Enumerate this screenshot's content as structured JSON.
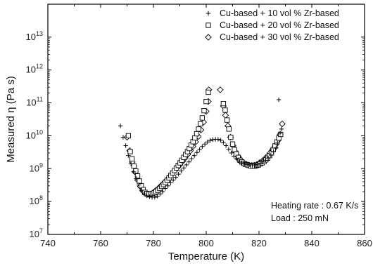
{
  "chart_data": {
    "type": "scatter",
    "title": "",
    "xlabel": "Temperature (K)",
    "ylabel": "Measured η (Pa s)",
    "xlim": [
      740,
      860
    ],
    "ylim": [
      10000000.0,
      100000000000000.0
    ],
    "yscale": "log",
    "x_ticks": [
      740,
      760,
      780,
      800,
      820,
      840,
      860
    ],
    "x_tick_labels": [
      "740",
      "760",
      "780",
      "800",
      "820",
      "840",
      "860"
    ],
    "y_ticks": [
      10000000.0,
      100000000.0,
      1000000000.0,
      10000000000.0,
      100000000000.0,
      1000000000000.0,
      10000000000000.0
    ],
    "y_tick_labels": [
      {
        "base": "10",
        "exp": "7"
      },
      {
        "base": "10",
        "exp": "8"
      },
      {
        "base": "10",
        "exp": "9"
      },
      {
        "base": "10",
        "exp": "10"
      },
      {
        "base": "10",
        "exp": "11"
      },
      {
        "base": "10",
        "exp": "12"
      },
      {
        "base": "10",
        "exp": "13"
      }
    ],
    "grid": false,
    "legend_position": "top-right",
    "annotations": [
      "Heating rate : 0.67 K/s",
      "Load : 250 mN"
    ],
    "series": [
      {
        "name": "Cu-based + 10 vol % Zr-based",
        "marker": "plus",
        "points": [
          [
            767.5,
            20000000000.0
          ],
          [
            768.5,
            9000000000.0
          ],
          [
            769.5,
            5000000000.0
          ],
          [
            770.5,
            2500000000.0
          ],
          [
            771.5,
            1400000000.0
          ],
          [
            772.5,
            800000000.0
          ],
          [
            773.5,
            500000000.0
          ],
          [
            774.5,
            320000000.0
          ],
          [
            775.5,
            220000000.0
          ],
          [
            776.5,
            170000000.0
          ],
          [
            777.5,
            150000000.0
          ],
          [
            778.5,
            140000000.0
          ],
          [
            779.5,
            135000000.0
          ],
          [
            780.5,
            135000000.0
          ],
          [
            781.5,
            145000000.0
          ],
          [
            782.5,
            170000000.0
          ],
          [
            783.5,
            200000000.0
          ],
          [
            784.5,
            250000000.0
          ],
          [
            785.5,
            300000000.0
          ],
          [
            786.5,
            370000000.0
          ],
          [
            787.5,
            450000000.0
          ],
          [
            788.5,
            550000000.0
          ],
          [
            789.5,
            680000000.0
          ],
          [
            790.5,
            850000000.0
          ],
          [
            791.5,
            1050000000.0
          ],
          [
            792.5,
            1300000000.0
          ],
          [
            793.5,
            1600000000.0
          ],
          [
            794.5,
            2000000000.0
          ],
          [
            795.5,
            2500000000.0
          ],
          [
            796.5,
            3100000000.0
          ],
          [
            797.5,
            3800000000.0
          ],
          [
            798.5,
            4700000000.0
          ],
          [
            799.5,
            5600000000.0
          ],
          [
            800.5,
            6500000000.0
          ],
          [
            801.5,
            7200000000.0
          ],
          [
            802.5,
            7600000000.0
          ],
          [
            803.5,
            7800000000.0
          ],
          [
            804.5,
            7800000000.0
          ],
          [
            805.5,
            7300000000.0
          ],
          [
            806.5,
            6200000000.0
          ],
          [
            807.5,
            5000000000.0
          ],
          [
            808.5,
            3900000000.0
          ],
          [
            809.5,
            3000000000.0
          ],
          [
            810.5,
            2400000000.0
          ],
          [
            811.5,
            2000000000.0
          ],
          [
            812.5,
            1700000000.0
          ],
          [
            813.5,
            1500000000.0
          ],
          [
            814.5,
            1400000000.0
          ],
          [
            815.5,
            1350000000.0
          ],
          [
            816.5,
            1300000000.0
          ],
          [
            817.5,
            1300000000.0
          ],
          [
            818.5,
            1300000000.0
          ],
          [
            819.5,
            1350000000.0
          ],
          [
            820.5,
            1450000000.0
          ],
          [
            821.5,
            1600000000.0
          ],
          [
            822.5,
            1800000000.0
          ],
          [
            823.5,
            2100000000.0
          ],
          [
            824.5,
            2600000000.0
          ],
          [
            825.5,
            3300000000.0
          ],
          [
            826.5,
            4300000000.0
          ],
          [
            827.0,
            6000000000.0
          ],
          [
            827.5,
            125000000000.0
          ],
          [
            828.0,
            12000000000.0
          ],
          [
            828.5,
            16000000000.0
          ]
        ]
      },
      {
        "name": "Cu-based + 20 vol % Zr-based",
        "marker": "square",
        "points": [
          [
            770.5,
            10000000000.0
          ],
          [
            771.2,
            3300000000.0
          ],
          [
            771.9,
            2000000000.0
          ],
          [
            772.6,
            1200000000.0
          ],
          [
            773.3,
            850000000.0
          ],
          [
            774.0,
            600000000.0
          ],
          [
            774.7,
            420000000.0
          ],
          [
            775.4,
            300000000.0
          ],
          [
            776.1,
            230000000.0
          ],
          [
            776.8,
            190000000.0
          ],
          [
            777.5,
            175000000.0
          ],
          [
            778.2,
            170000000.0
          ],
          [
            778.9,
            170000000.0
          ],
          [
            779.6,
            175000000.0
          ],
          [
            780.3,
            185000000.0
          ],
          [
            781.0,
            200000000.0
          ],
          [
            781.7,
            220000000.0
          ],
          [
            782.4,
            250000000.0
          ],
          [
            783.1,
            290000000.0
          ],
          [
            783.8,
            330000000.0
          ],
          [
            784.5,
            380000000.0
          ],
          [
            785.2,
            440000000.0
          ],
          [
            785.9,
            520000000.0
          ],
          [
            786.6,
            620000000.0
          ],
          [
            787.3,
            740000000.0
          ],
          [
            788.0,
            880000000.0
          ],
          [
            788.7,
            1050000000.0
          ],
          [
            789.4,
            1250000000.0
          ],
          [
            790.1,
            1500000000.0
          ],
          [
            790.8,
            1800000000.0
          ],
          [
            791.5,
            2200000000.0
          ],
          [
            792.2,
            2700000000.0
          ],
          [
            792.9,
            3300000000.0
          ],
          [
            793.6,
            4100000000.0
          ],
          [
            794.3,
            5200000000.0
          ],
          [
            795.0,
            6600000000.0
          ],
          [
            795.7,
            8600000000.0
          ],
          [
            796.4,
            11500000000.0
          ],
          [
            797.1,
            16000000000.0
          ],
          [
            797.8,
            23000000000.0
          ],
          [
            798.5,
            35000000000.0
          ],
          [
            799.2,
            58000000000.0
          ],
          [
            800.0,
            110000000000.0
          ],
          [
            800.8,
            210000000000.0
          ],
          [
            806.5,
            95000000000.0
          ],
          [
            807.2,
            60000000000.0
          ],
          [
            807.9,
            30000000000.0
          ],
          [
            808.6,
            16000000000.0
          ],
          [
            809.3,
            9000000000.0
          ],
          [
            810.0,
            5600000000.0
          ],
          [
            810.7,
            3800000000.0
          ],
          [
            811.4,
            2800000000.0
          ],
          [
            812.1,
            2200000000.0
          ],
          [
            812.8,
            1800000000.0
          ],
          [
            813.5,
            1600000000.0
          ],
          [
            814.2,
            1450000000.0
          ],
          [
            814.9,
            1350000000.0
          ],
          [
            815.6,
            1300000000.0
          ],
          [
            816.3,
            1250000000.0
          ],
          [
            817.0,
            1200000000.0
          ],
          [
            817.7,
            1200000000.0
          ],
          [
            818.4,
            1200000000.0
          ],
          [
            819.1,
            1250000000.0
          ],
          [
            819.8,
            1300000000.0
          ],
          [
            820.5,
            1400000000.0
          ],
          [
            821.2,
            1500000000.0
          ],
          [
            821.9,
            1650000000.0
          ],
          [
            822.6,
            1850000000.0
          ],
          [
            823.3,
            2100000000.0
          ],
          [
            824.0,
            2500000000.0
          ],
          [
            824.7,
            3000000000.0
          ],
          [
            825.4,
            3800000000.0
          ],
          [
            826.1,
            4900000000.0
          ],
          [
            826.8,
            6500000000.0
          ],
          [
            827.5,
            8500000000.0
          ],
          [
            828.2,
            11000000000.0
          ]
        ]
      },
      {
        "name": "Cu-based + 30 vol % Zr-based",
        "marker": "diamond",
        "points": [
          [
            770.0,
            9000000000.0
          ],
          [
            771.0,
            3500000000.0
          ],
          [
            772.0,
            1600000000.0
          ],
          [
            773.0,
            800000000.0
          ],
          [
            774.0,
            450000000.0
          ],
          [
            775.0,
            290000000.0
          ],
          [
            776.0,
            210000000.0
          ],
          [
            777.0,
            175000000.0
          ],
          [
            778.0,
            165000000.0
          ],
          [
            779.0,
            170000000.0
          ],
          [
            780.0,
            190000000.0
          ],
          [
            781.0,
            220000000.0
          ],
          [
            782.0,
            260000000.0
          ],
          [
            783.0,
            310000000.0
          ],
          [
            784.0,
            370000000.0
          ],
          [
            785.0,
            450000000.0
          ],
          [
            786.0,
            550000000.0
          ],
          [
            787.0,
            680000000.0
          ],
          [
            788.0,
            850000000.0
          ],
          [
            789.0,
            1050000000.0
          ],
          [
            790.0,
            1300000000.0
          ],
          [
            791.0,
            1650000000.0
          ],
          [
            792.0,
            2100000000.0
          ],
          [
            793.0,
            2700000000.0
          ],
          [
            794.0,
            3500000000.0
          ],
          [
            795.0,
            4700000000.0
          ],
          [
            796.0,
            6500000000.0
          ],
          [
            797.0,
            9500000000.0
          ],
          [
            798.0,
            15000000000.0
          ],
          [
            799.0,
            26000000000.0
          ],
          [
            800.0,
            55000000000.0
          ],
          [
            800.8,
            110000000000.0
          ],
          [
            801.0,
            250000000000.0
          ],
          [
            805.3,
            250000000000.0
          ],
          [
            806.5,
            80000000000.0
          ],
          [
            807.3,
            42000000000.0
          ],
          [
            808.2,
            20000000000.0
          ],
          [
            809.2,
            9000000000.0
          ],
          [
            810.2,
            5000000000.0
          ],
          [
            811.2,
            3200000000.0
          ],
          [
            812.2,
            2300000000.0
          ],
          [
            813.2,
            1800000000.0
          ],
          [
            814.2,
            1500000000.0
          ],
          [
            815.2,
            1350000000.0
          ],
          [
            816.2,
            1280000000.0
          ],
          [
            817.2,
            1250000000.0
          ],
          [
            818.2,
            1270000000.0
          ],
          [
            819.2,
            1350000000.0
          ],
          [
            820.2,
            1500000000.0
          ],
          [
            821.2,
            1700000000.0
          ],
          [
            822.2,
            2000000000.0
          ],
          [
            823.2,
            2400000000.0
          ],
          [
            824.2,
            3000000000.0
          ],
          [
            825.2,
            3900000000.0
          ],
          [
            826.2,
            5200000000.0
          ],
          [
            827.2,
            7200000000.0
          ],
          [
            828.0,
            11000000000.0
          ],
          [
            828.8,
            23000000000.0
          ]
        ]
      }
    ]
  }
}
